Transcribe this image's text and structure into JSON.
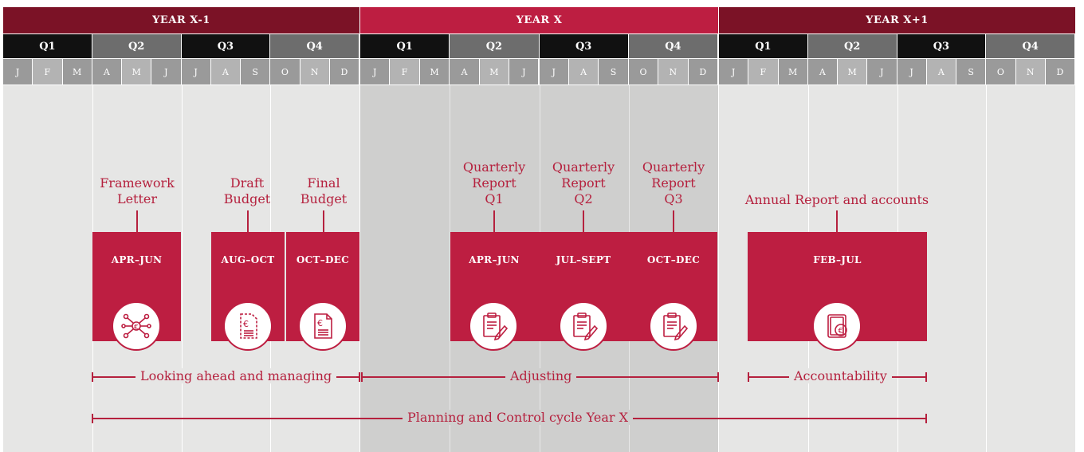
{
  "years": [
    {
      "label": "YEAR X-1",
      "color": "#7b1226"
    },
    {
      "label": "YEAR X",
      "color": "#bd1e41"
    },
    {
      "label": "YEAR X+1",
      "color": "#7b1226"
    }
  ],
  "quarters": [
    "Q1",
    "Q2",
    "Q3",
    "Q4",
    "Q1",
    "Q2",
    "Q3",
    "Q4",
    "Q1",
    "Q2",
    "Q3",
    "Q4"
  ],
  "months": [
    "J",
    "F",
    "M",
    "A",
    "M",
    "J",
    "J",
    "A",
    "S",
    "O",
    "N",
    "D",
    "J",
    "F",
    "M",
    "A",
    "M",
    "J",
    "J",
    "A",
    "S",
    "O",
    "N",
    "D",
    "J",
    "F",
    "M",
    "A",
    "M",
    "J",
    "J",
    "A",
    "S",
    "O",
    "N",
    "D"
  ],
  "colors": {
    "accent": "#bd1e41",
    "dark": "#7b1226",
    "quarter_dark": "#111111",
    "quarter_grey": "#6d6d6d"
  },
  "labels": {
    "framework": "Framework\nLetter",
    "draft": "Draft\nBudget",
    "final": "Final\nBudget",
    "qr1": "Quarterly\nReport\nQ1",
    "qr2": "Quarterly\nReport\nQ2",
    "qr3": "Quarterly\nReport\nQ3",
    "annual": "Annual Report and accounts"
  },
  "boxes": {
    "apr_jun_1": "APR–JUN",
    "aug_oct": "AUG–OCT",
    "oct_dec_1": "OCT–DEC",
    "apr_jun_2": "APR–JUN",
    "jul_sept": "JUL–SEPT",
    "oct_dec_2": "OCT–DEC",
    "feb_jul": "FEB–JUL"
  },
  "icons": {
    "framework": "network-euro-icon",
    "draft": "euro-document-icon",
    "final": "euro-document-icon",
    "reports": "clipboard-pen-icon",
    "annual": "euro-binder-icon"
  },
  "phases": {
    "ahead": "Looking ahead and managing",
    "adjusting": "Adjusting",
    "accountability": "Accountability",
    "cycle": "Planning and Control cycle Year X"
  }
}
